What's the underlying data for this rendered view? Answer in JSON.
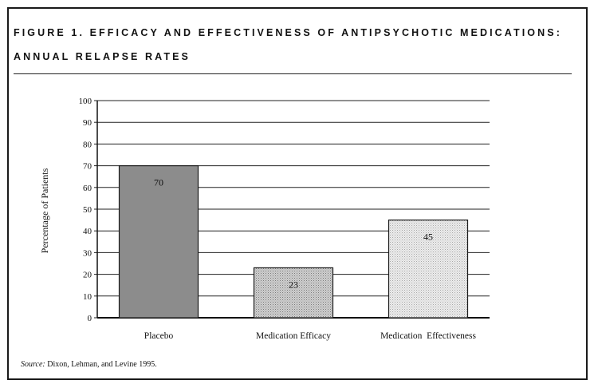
{
  "figure": {
    "title_line1": "Figure 1. Efficacy and Effectiveness of Antipsychotic Medications:",
    "title_line2": "Annual Relapse Rates",
    "source_label": "Source:",
    "source_text": "Dixon, Lehman, and Levine 1995."
  },
  "chart_data": {
    "type": "bar",
    "categories": [
      "Placebo",
      "Medication Efficacy",
      "Medication  Effectiveness"
    ],
    "values": [
      70,
      23,
      45
    ],
    "data_labels": [
      "70",
      "23",
      "45"
    ],
    "title": "Figure 1. Efficacy and Effectiveness of Antipsychotic Medications: Annual Relapse Rates",
    "xlabel": "",
    "ylabel": "Percentage of Patients",
    "ylim": [
      0,
      100
    ],
    "yticks": [
      0,
      10,
      20,
      30,
      40,
      50,
      60,
      70,
      80,
      90,
      100
    ],
    "grid": true,
    "legend": "none",
    "bar_colors": [
      "#8c8c8c",
      "#c2c2c2",
      "#e0e0e0"
    ],
    "bar_patterns": [
      "solid",
      "dotted",
      "dotted"
    ]
  }
}
